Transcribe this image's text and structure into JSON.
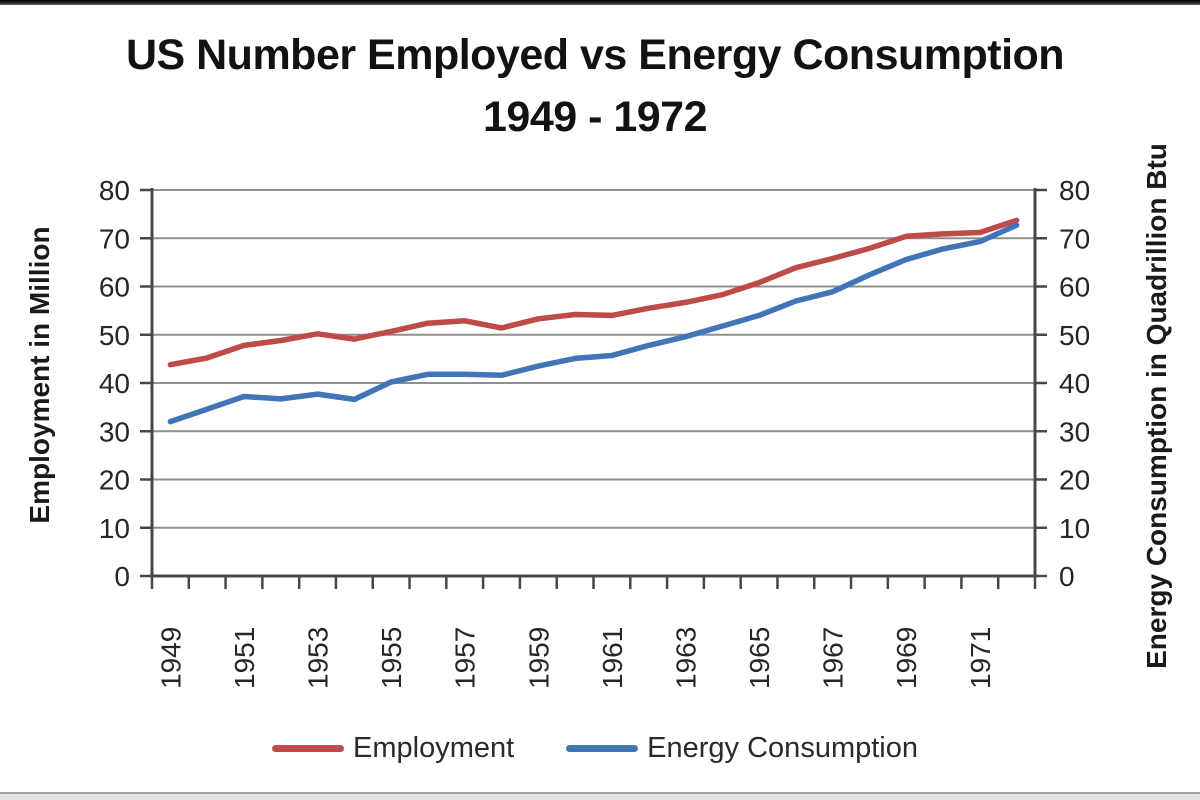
{
  "title": {
    "line1": "US Number Employed vs Energy Consumption",
    "line2": "1949 - 1972"
  },
  "chart_data": {
    "type": "line",
    "title": "US Number Employed vs Energy Consumption 1949 - 1972",
    "x": [
      1949,
      1950,
      1951,
      1952,
      1953,
      1954,
      1955,
      1956,
      1957,
      1958,
      1959,
      1960,
      1961,
      1962,
      1963,
      1964,
      1965,
      1966,
      1967,
      1968,
      1969,
      1970,
      1971,
      1972
    ],
    "x_tick_labels": [
      "1949",
      "1951",
      "1953",
      "1955",
      "1957",
      "1959",
      "1961",
      "1963",
      "1965",
      "1967",
      "1969",
      "1971"
    ],
    "series": [
      {
        "name": "Employment",
        "axis": "left",
        "color": "#BE4B48",
        "values": [
          43.8,
          45.2,
          47.8,
          48.8,
          50.2,
          49.1,
          50.7,
          52.4,
          52.9,
          51.4,
          53.3,
          54.2,
          54.0,
          55.5,
          56.7,
          58.3,
          60.8,
          63.9,
          65.8,
          67.9,
          70.4,
          70.9,
          71.2,
          73.7
        ]
      },
      {
        "name": "Energy Consumption",
        "axis": "right",
        "color": "#4274B8",
        "values": [
          32.0,
          34.6,
          37.2,
          36.7,
          37.7,
          36.6,
          40.2,
          41.8,
          41.8,
          41.6,
          43.5,
          45.1,
          45.7,
          47.8,
          49.6,
          51.8,
          54.0,
          57.0,
          58.9,
          62.4,
          65.6,
          67.8,
          69.3,
          72.7
        ]
      }
    ],
    "y_left": {
      "title": "Employment in Million",
      "min": 0,
      "max": 80,
      "tick_step": 10
    },
    "y_right": {
      "title": "Energy Consumption in Quadrillion Btu",
      "min": 0,
      "max": 80,
      "tick_step": 10
    },
    "legend_position": "bottom",
    "grid": "horizontal",
    "colors": {
      "gridline": "#8f8f8f",
      "axis": "#474747",
      "tick_text": "#262626"
    }
  }
}
